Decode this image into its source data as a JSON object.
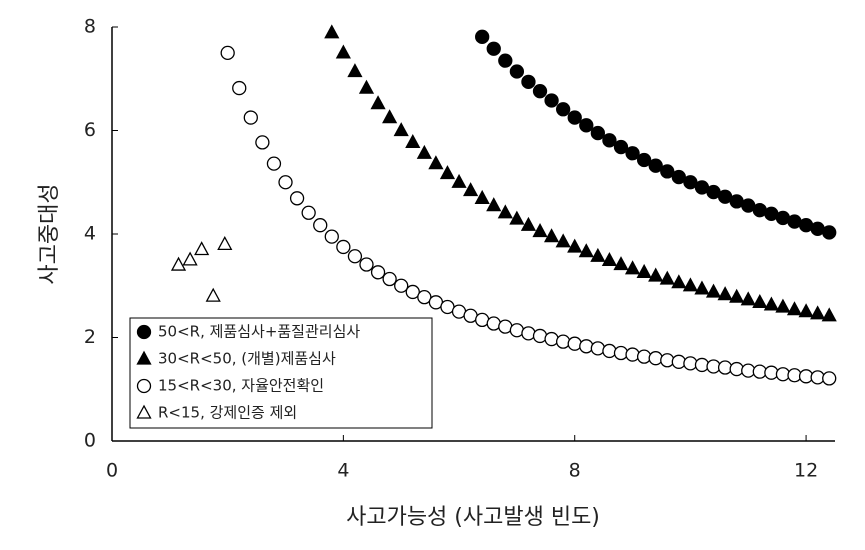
{
  "chart_data": {
    "type": "scatter",
    "x_label": "사고가능성 (사고발생 빈도)",
    "y_label": "사고중대성",
    "xlim": [
      0,
      12.5
    ],
    "ylim": [
      0,
      8
    ],
    "xticks": [
      0,
      4,
      8,
      12
    ],
    "yticks": [
      0,
      2,
      4,
      6,
      8
    ],
    "grid": false,
    "legend": "lower left",
    "series": [
      {
        "name": "50<R, 제품심사+품질관리심사",
        "color": "#000000",
        "marker": "circle",
        "filled": true,
        "x": [
          6.4,
          6.6,
          6.8,
          7.0,
          7.2,
          7.4,
          7.6,
          7.8,
          8.0,
          8.2,
          8.4,
          8.6,
          8.8,
          9.0,
          9.2,
          9.4,
          9.6,
          9.8,
          10.0,
          10.2,
          10.4,
          10.6,
          10.8,
          11.0,
          11.2,
          11.4,
          11.6,
          11.8,
          12.0,
          12.2,
          12.4
        ],
        "values": [
          7.81,
          7.58,
          7.35,
          7.14,
          6.94,
          6.76,
          6.58,
          6.41,
          6.25,
          6.1,
          5.95,
          5.81,
          5.68,
          5.56,
          5.43,
          5.32,
          5.21,
          5.1,
          5.0,
          4.9,
          4.81,
          4.72,
          4.63,
          4.55,
          4.46,
          4.39,
          4.31,
          4.24,
          4.17,
          4.1,
          4.03
        ]
      },
      {
        "name": "30<R<50, (개별)제품심사",
        "color": "#000000",
        "marker": "triangle",
        "filled": true,
        "x": [
          3.8,
          4.0,
          4.2,
          4.4,
          4.6,
          4.8,
          5.0,
          5.2,
          5.4,
          5.6,
          5.8,
          6.0,
          6.2,
          6.4,
          6.6,
          6.8,
          7.0,
          7.2,
          7.4,
          7.6,
          7.8,
          8.0,
          8.2,
          8.4,
          8.6,
          8.8,
          9.0,
          9.2,
          9.4,
          9.6,
          9.8,
          10.0,
          10.2,
          10.4,
          10.6,
          10.8,
          11.0,
          11.2,
          11.4,
          11.6,
          11.8,
          12.0,
          12.2,
          12.4
        ],
        "values": [
          7.89,
          7.5,
          7.14,
          6.82,
          6.52,
          6.25,
          6.0,
          5.77,
          5.56,
          5.36,
          5.17,
          5.0,
          4.84,
          4.69,
          4.55,
          4.41,
          4.29,
          4.17,
          4.05,
          3.95,
          3.85,
          3.75,
          3.66,
          3.57,
          3.49,
          3.41,
          3.33,
          3.26,
          3.19,
          3.13,
          3.06,
          3.0,
          2.94,
          2.88,
          2.83,
          2.78,
          2.73,
          2.68,
          2.63,
          2.59,
          2.54,
          2.5,
          2.46,
          2.42
        ]
      },
      {
        "name": "15<R<30, 자율안전확인",
        "color": "#000000",
        "marker": "circle",
        "filled": false,
        "x": [
          2.0,
          2.2,
          2.4,
          2.6,
          2.8,
          3.0,
          3.2,
          3.4,
          3.6,
          3.8,
          4.0,
          4.2,
          4.4,
          4.6,
          4.8,
          5.0,
          5.2,
          5.4,
          5.6,
          5.8,
          6.0,
          6.2,
          6.4,
          6.6,
          6.8,
          7.0,
          7.2,
          7.4,
          7.6,
          7.8,
          8.0,
          8.2,
          8.4,
          8.6,
          8.8,
          9.0,
          9.2,
          9.4,
          9.6,
          9.8,
          10.0,
          10.2,
          10.4,
          10.6,
          10.8,
          11.0,
          11.2,
          11.4,
          11.6,
          11.8,
          12.0,
          12.2,
          12.4
        ],
        "values": [
          7.5,
          6.82,
          6.25,
          5.77,
          5.36,
          5.0,
          4.69,
          4.41,
          4.17,
          3.95,
          3.75,
          3.57,
          3.41,
          3.26,
          3.13,
          3.0,
          2.88,
          2.78,
          2.68,
          2.59,
          2.5,
          2.42,
          2.34,
          2.27,
          2.21,
          2.14,
          2.08,
          2.03,
          1.97,
          1.92,
          1.88,
          1.83,
          1.79,
          1.74,
          1.7,
          1.67,
          1.63,
          1.6,
          1.56,
          1.53,
          1.5,
          1.47,
          1.44,
          1.42,
          1.39,
          1.36,
          1.34,
          1.32,
          1.29,
          1.27,
          1.25,
          1.23,
          1.21
        ]
      },
      {
        "name": "R<15, 강제인증 제외",
        "color": "#000000",
        "marker": "triangle",
        "filled": false,
        "x": [
          1.15,
          1.35,
          1.55,
          1.75,
          1.95
        ],
        "values": [
          3.4,
          3.5,
          3.7,
          2.8,
          3.8
        ]
      }
    ]
  }
}
